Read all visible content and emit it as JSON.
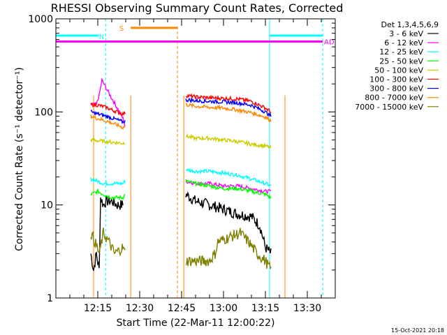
{
  "chart_data": {
    "type": "line",
    "title": "RHESSI Observing Summary Count Rates, Corrected",
    "xlabel": "Start Time (22-Mar-11 12:00:22)",
    "ylabel": "Corrected Count Rate (s⁻¹ detector⁻¹)",
    "yscale": "log",
    "ylim": [
      1,
      1000
    ],
    "xlim_minutes": [
      0,
      100
    ],
    "x_ticks": [
      {
        "label": "12:15",
        "m": 15
      },
      {
        "label": "12:30",
        "m": 30
      },
      {
        "label": "12:45",
        "m": 45
      },
      {
        "label": "13:00",
        "m": 60
      },
      {
        "label": "13:15",
        "m": 75
      },
      {
        "label": "13:30",
        "m": 90
      }
    ],
    "y_ticks": [
      {
        "label": "1",
        "v": 1
      },
      {
        "label": "10",
        "v": 10
      },
      {
        "label": "100",
        "v": 100
      },
      {
        "label": "1000",
        "v": 1000
      }
    ],
    "legend_title": "Det 1,3,4,5,6,9",
    "series": [
      {
        "name": "3 - 6 keV",
        "color": "#000000",
        "seg1": [
          [
            12.5,
            3
          ],
          [
            13.5,
            2
          ],
          [
            14.5,
            3
          ],
          [
            15.5,
            2
          ],
          [
            16.0,
            12
          ],
          [
            17,
            10
          ],
          [
            18,
            11
          ],
          [
            20,
            11
          ],
          [
            22,
            10
          ],
          [
            24,
            10
          ]
        ],
        "seg2": [
          [
            46.5,
            13
          ],
          [
            50,
            11
          ],
          [
            55,
            10
          ],
          [
            60,
            9
          ],
          [
            65,
            8
          ],
          [
            70,
            7.5
          ],
          [
            73,
            6
          ],
          [
            75,
            3.5
          ],
          [
            77,
            3
          ]
        ]
      },
      {
        "name": "6 - 12 keV",
        "color": "#ff00ff",
        "seg1": [
          [
            12.5,
            120
          ],
          [
            14.5,
            120
          ],
          [
            15.5,
            150
          ],
          [
            16.5,
            220
          ],
          [
            18,
            180
          ],
          [
            20,
            140
          ],
          [
            22,
            110
          ],
          [
            24,
            85
          ],
          [
            24.8,
            70
          ]
        ],
        "seg2": [
          [
            46.5,
            18
          ],
          [
            50,
            17
          ],
          [
            55,
            17
          ],
          [
            60,
            16
          ],
          [
            65,
            16
          ],
          [
            70,
            15
          ],
          [
            75,
            14
          ],
          [
            77,
            14
          ]
        ]
      },
      {
        "name": "12 - 25 keV",
        "color": "#00ffff",
        "seg1": [
          [
            12.5,
            19
          ],
          [
            15,
            18
          ],
          [
            17,
            17
          ],
          [
            20,
            17
          ],
          [
            24,
            17
          ],
          [
            24.8,
            18
          ]
        ],
        "seg2": [
          [
            46.5,
            24
          ],
          [
            50,
            23
          ],
          [
            55,
            23
          ],
          [
            60,
            22
          ],
          [
            65,
            21
          ],
          [
            70,
            19
          ],
          [
            75,
            17
          ],
          [
            77,
            16
          ]
        ]
      },
      {
        "name": "25 - 50 keV",
        "color": "#00ff00",
        "seg1": [
          [
            12.5,
            13
          ],
          [
            15,
            14
          ],
          [
            17,
            13
          ],
          [
            20,
            12
          ],
          [
            24,
            12
          ],
          [
            24.8,
            13
          ]
        ],
        "seg2": [
          [
            46.5,
            18
          ],
          [
            50,
            17
          ],
          [
            55,
            16
          ],
          [
            60,
            15
          ],
          [
            65,
            15
          ],
          [
            70,
            14
          ],
          [
            75,
            13
          ],
          [
            77,
            12
          ]
        ]
      },
      {
        "name": "50 - 100 keV",
        "color": "#cccc00",
        "seg1": [
          [
            12.5,
            50
          ],
          [
            15,
            49
          ],
          [
            18,
            48
          ],
          [
            21,
            47
          ],
          [
            24,
            46
          ],
          [
            24.8,
            47
          ]
        ],
        "seg2": [
          [
            46.5,
            55
          ],
          [
            50,
            52
          ],
          [
            55,
            52
          ],
          [
            60,
            50
          ],
          [
            65,
            48
          ],
          [
            70,
            45
          ],
          [
            75,
            43
          ],
          [
            77,
            41
          ]
        ]
      },
      {
        "name": "100 - 300 keV",
        "color": "#ff0000",
        "seg1": [
          [
            12.5,
            120
          ],
          [
            15,
            118
          ],
          [
            18,
            112
          ],
          [
            20,
            105
          ],
          [
            22,
            100
          ],
          [
            24,
            95
          ],
          [
            24.8,
            98
          ]
        ],
        "seg2": [
          [
            46.5,
            150
          ],
          [
            50,
            145
          ],
          [
            55,
            142
          ],
          [
            60,
            140
          ],
          [
            65,
            138
          ],
          [
            70,
            130
          ],
          [
            75,
            110
          ],
          [
            77,
            100
          ]
        ]
      },
      {
        "name": "300 - 800 keV",
        "color": "#0000ff",
        "seg1": [
          [
            12.5,
            100
          ],
          [
            15,
            95
          ],
          [
            18,
            90
          ],
          [
            20,
            86
          ],
          [
            22,
            82
          ],
          [
            24,
            78
          ],
          [
            24.8,
            80
          ]
        ],
        "seg2": [
          [
            46.5,
            135
          ],
          [
            50,
            132
          ],
          [
            55,
            130
          ],
          [
            60,
            128
          ],
          [
            65,
            125
          ],
          [
            70,
            118
          ],
          [
            75,
            100
          ],
          [
            77,
            90
          ]
        ]
      },
      {
        "name": "800 - 7000 keV",
        "color": "#ff8800",
        "seg1": [
          [
            12.5,
            90
          ],
          [
            15,
            85
          ],
          [
            18,
            80
          ],
          [
            20,
            76
          ],
          [
            22,
            72
          ],
          [
            24,
            68
          ],
          [
            24.8,
            70
          ]
        ],
        "seg2": [
          [
            46.5,
            120
          ],
          [
            50,
            115
          ],
          [
            55,
            112
          ],
          [
            60,
            110
          ],
          [
            65,
            105
          ],
          [
            70,
            98
          ],
          [
            75,
            88
          ],
          [
            77,
            80
          ]
        ]
      },
      {
        "name": "7000 - 15000 keV",
        "color": "#808000",
        "seg1": [
          [
            12.5,
            5
          ],
          [
            14,
            4
          ],
          [
            15.5,
            3
          ],
          [
            17,
            5
          ],
          [
            19,
            4
          ],
          [
            21,
            3
          ],
          [
            24,
            3.5
          ],
          [
            24.8,
            3
          ]
        ],
        "seg2": [
          [
            46.5,
            2.5
          ],
          [
            50,
            2.5
          ],
          [
            55,
            2.5
          ],
          [
            57,
            3
          ],
          [
            58,
            4
          ],
          [
            62,
            4.5
          ],
          [
            66,
            5
          ],
          [
            69,
            4
          ],
          [
            72,
            3
          ],
          [
            75,
            2.5
          ],
          [
            77,
            2
          ]
        ]
      }
    ],
    "annotations": {
      "N_label": "N",
      "S_label": "S",
      "AD_label": "AD",
      "AD_level": 570,
      "N_level": 660,
      "S_level": 800
    }
  },
  "footer": {
    "timestamp": "15-Oct-2021 20:18"
  }
}
